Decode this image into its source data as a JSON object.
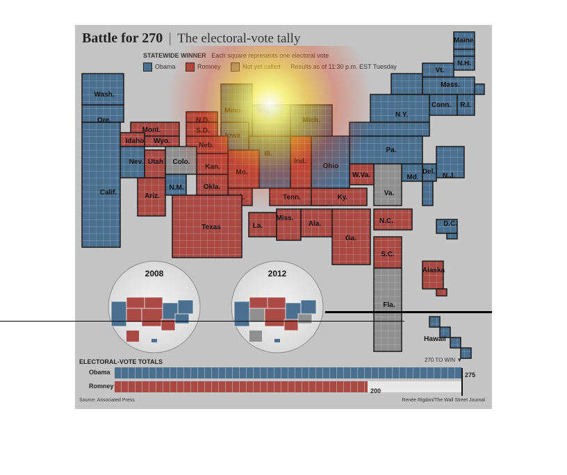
{
  "title": "Battle for 270",
  "title_sep": "|",
  "subtitle": "The electoral-vote tally",
  "legend": {
    "heading": "STATEWIDE WINNER",
    "note": "Each square represents one electoral vote",
    "items": [
      {
        "label": "Obama",
        "color": "#4a6f8f"
      },
      {
        "label": "Romney",
        "color": "#a94a45"
      },
      {
        "label": "Not yet called",
        "color": "#8f8f8f"
      }
    ],
    "as_of": "Results as of 11:30 p.m. EST Tuesday"
  },
  "colors": {
    "obama": "#4a6f8f",
    "romney": "#a94a45",
    "uncalled": "#8f8f8f",
    "panel": "#c4c4c4"
  },
  "states": [
    {
      "label": "Maine",
      "winner": "obama"
    },
    {
      "label": "N.H.",
      "winner": "obama"
    },
    {
      "label": "Vt.",
      "winner": "obama"
    },
    {
      "label": "Mass.",
      "winner": "obama"
    },
    {
      "label": "Conn.",
      "winner": "obama"
    },
    {
      "label": "R.I.",
      "winner": "obama"
    },
    {
      "label": "N.Y.",
      "winner": "obama"
    },
    {
      "label": "Pa.",
      "winner": "obama"
    },
    {
      "label": "N.J.",
      "winner": "obama"
    },
    {
      "label": "Del.",
      "winner": "obama"
    },
    {
      "label": "Md.",
      "winner": "obama"
    },
    {
      "label": "D.C.",
      "winner": "obama"
    },
    {
      "label": "Va.",
      "winner": "uncalled"
    },
    {
      "label": "W.Va.",
      "winner": "romney"
    },
    {
      "label": "N.C.",
      "winner": "romney"
    },
    {
      "label": "S.C.",
      "winner": "romney"
    },
    {
      "label": "Ga.",
      "winner": "romney"
    },
    {
      "label": "Fla.",
      "winner": "uncalled"
    },
    {
      "label": "Ala.",
      "winner": "romney"
    },
    {
      "label": "Miss.",
      "winner": "romney"
    },
    {
      "label": "Tenn.",
      "winner": "romney"
    },
    {
      "label": "Ky.",
      "winner": "romney"
    },
    {
      "label": "Ohio",
      "winner": "obama"
    },
    {
      "label": "Ind.",
      "winner": "romney"
    },
    {
      "label": "Mich.",
      "winner": "obama"
    },
    {
      "label": "Ill.",
      "winner": "obama"
    },
    {
      "label": "Wis.",
      "winner": "obama"
    },
    {
      "label": "Minn.",
      "winner": "obama"
    },
    {
      "label": "Iowa",
      "winner": "obama"
    },
    {
      "label": "Mo.",
      "winner": "romney"
    },
    {
      "label": "Ark.",
      "winner": "romney"
    },
    {
      "label": "La.",
      "winner": "romney"
    },
    {
      "label": "Texas",
      "winner": "romney"
    },
    {
      "label": "Okla.",
      "winner": "romney"
    },
    {
      "label": "Kan.",
      "winner": "romney"
    },
    {
      "label": "Neb.",
      "winner": "romney"
    },
    {
      "label": "S.D.",
      "winner": "romney"
    },
    {
      "label": "N.D.",
      "winner": "romney"
    },
    {
      "label": "Mont.",
      "winner": "romney"
    },
    {
      "label": "Wyo.",
      "winner": "romney"
    },
    {
      "label": "Colo.",
      "winner": "uncalled"
    },
    {
      "label": "N.M.",
      "winner": "obama"
    },
    {
      "label": "Ariz.",
      "winner": "romney"
    },
    {
      "label": "Utah",
      "winner": "romney"
    },
    {
      "label": "Idaho",
      "winner": "romney"
    },
    {
      "label": "Nev.",
      "winner": "obama"
    },
    {
      "label": "Calif.",
      "winner": "obama"
    },
    {
      "label": "Ore.",
      "winner": "obama"
    },
    {
      "label": "Wash.",
      "winner": "obama"
    },
    {
      "label": "Alaska",
      "winner": "romney"
    },
    {
      "label": "Hawaii",
      "winner": "obama"
    }
  ],
  "insets": [
    {
      "label": "2008"
    },
    {
      "label": "2012"
    }
  ],
  "totals": {
    "heading": "ELECTORAL-VOTE TOTALS",
    "to_win_label": "270 TO WIN",
    "to_win": 270,
    "max": 275,
    "rows": [
      {
        "name": "Obama",
        "value": 275,
        "color": "#4a6f8f"
      },
      {
        "name": "Romney",
        "value": 200,
        "color": "#a94a45"
      }
    ]
  },
  "source": "Source: Associated Press",
  "credit": "Renée Rigdon/The Wall Street Journal"
}
